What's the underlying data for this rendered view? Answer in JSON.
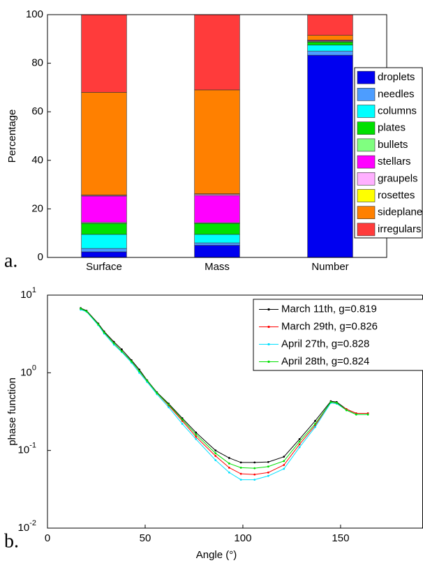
{
  "chart_data": [
    {
      "type": "bar",
      "panel_label": "a.",
      "ylabel": "Percentage",
      "categories": [
        "Surface",
        "Mass",
        "Number"
      ],
      "ylim": [
        0,
        100
      ],
      "yticks": [
        0,
        20,
        40,
        60,
        80,
        100
      ],
      "stacked": true,
      "legend": "upper right",
      "series": [
        {
          "name": "droplets",
          "color": "#0000f0",
          "values": [
            2.3,
            5,
            83.3
          ]
        },
        {
          "name": "needles",
          "color": "#4d9dff",
          "values": [
            1.4,
            1,
            1.7
          ]
        },
        {
          "name": "columns",
          "color": "#00ffff",
          "values": [
            5.8,
            3.5,
            2.5
          ]
        },
        {
          "name": "plates",
          "color": "#00e000",
          "values": [
            4.5,
            4.5,
            1.2
          ]
        },
        {
          "name": "bullets",
          "color": "#80ff80",
          "values": [
            0.4,
            0.3,
            0.3
          ]
        },
        {
          "name": "stellars",
          "color": "#ff00ff",
          "values": [
            10.9,
            11.2,
            0.3
          ]
        },
        {
          "name": "graupels",
          "color": "#ffb0ff",
          "values": [
            0.3,
            0.5,
            0.1
          ]
        },
        {
          "name": "rosettes",
          "color": "#ffff00",
          "values": [
            0.1,
            0.2,
            0.1
          ]
        },
        {
          "name": "sideplanes",
          "color": "#ff8000",
          "values": [
            42.3,
            42.8,
            2
          ]
        },
        {
          "name": "irregulars",
          "color": "#ff3b3b",
          "values": [
            32,
            31,
            8.5
          ]
        }
      ]
    },
    {
      "type": "line",
      "panel_label": "b.",
      "xlabel": "Angle (°)",
      "ylabel": "phase function",
      "log_y": true,
      "legend": "upper right",
      "xlim": [
        0,
        192
      ],
      "xticks": [
        0,
        50,
        100,
        150
      ],
      "ylim": [
        0.01,
        10
      ],
      "yticks": [
        {
          "value": 0.01,
          "label": "10",
          "exponent": "-2"
        },
        {
          "value": 0.1,
          "label": "10",
          "exponent": "-1"
        },
        {
          "value": 1,
          "label": "10",
          "exponent": "0"
        },
        {
          "value": 10,
          "label": "10",
          "exponent": "1"
        }
      ],
      "x": [
        17,
        20,
        26,
        29,
        34,
        38,
        43,
        47,
        51,
        56,
        62,
        69,
        76,
        86,
        93,
        99,
        106,
        113,
        121,
        129,
        137,
        145,
        148,
        153,
        158,
        164
      ],
      "series": [
        {
          "name": "March 11th, g=0.819",
          "color": "#000000",
          "values": [
            6.8,
            6.3,
            4.3,
            3.4,
            2.5,
            2.0,
            1.45,
            1.1,
            0.8,
            0.56,
            0.4,
            0.26,
            0.17,
            0.1,
            0.08,
            0.07,
            0.07,
            0.071,
            0.083,
            0.14,
            0.24,
            0.43,
            0.42,
            0.34,
            0.3,
            0.3
          ]
        },
        {
          "name": "March 29th, g=0.826",
          "color": "#ff0000",
          "values": [
            6.6,
            6.2,
            4.2,
            3.3,
            2.4,
            1.9,
            1.4,
            1.05,
            0.78,
            0.55,
            0.38,
            0.24,
            0.15,
            0.085,
            0.06,
            0.05,
            0.049,
            0.052,
            0.065,
            0.12,
            0.21,
            0.42,
            0.4,
            0.34,
            0.3,
            0.3
          ]
        },
        {
          "name": "April 27th, g=0.828",
          "color": "#00e0ff",
          "values": [
            6.5,
            6.1,
            4.1,
            3.2,
            2.3,
            1.85,
            1.35,
            1.0,
            0.76,
            0.53,
            0.36,
            0.22,
            0.14,
            0.075,
            0.052,
            0.042,
            0.042,
            0.047,
            0.058,
            0.11,
            0.2,
            0.41,
            0.4,
            0.33,
            0.29,
            0.29
          ]
        },
        {
          "name": "April 28th, g=0.824",
          "color": "#00e000",
          "values": [
            6.7,
            6.2,
            4.2,
            3.3,
            2.4,
            1.9,
            1.4,
            1.05,
            0.79,
            0.55,
            0.39,
            0.25,
            0.16,
            0.092,
            0.068,
            0.06,
            0.059,
            0.062,
            0.073,
            0.13,
            0.22,
            0.42,
            0.41,
            0.33,
            0.29,
            0.29
          ]
        }
      ]
    }
  ]
}
